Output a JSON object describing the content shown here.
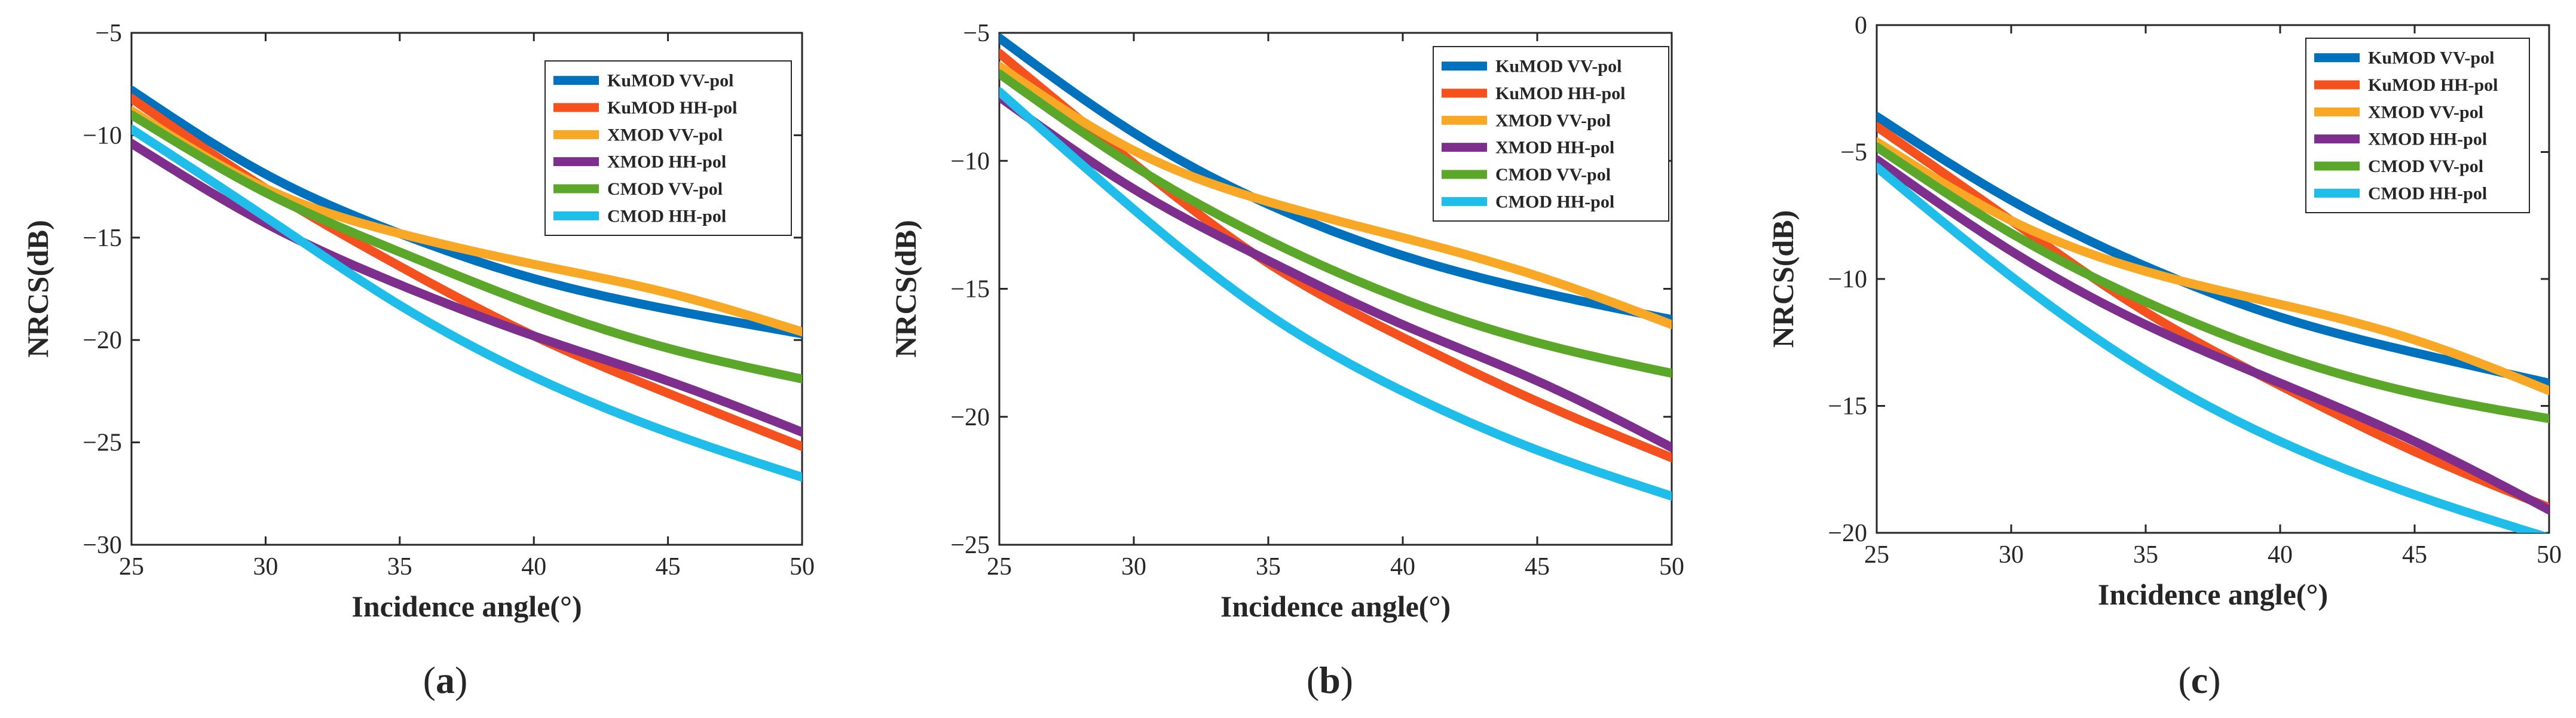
{
  "figure": {
    "colors": {
      "KuMOD VV-pol": "#0072BD",
      "KuMOD HH-pol": "#F4511E",
      "XMOD VV-pol": "#F9A825",
      "XMOD HH-pol": "#7E2F8E",
      "CMOD VV-pol": "#5AA72A",
      "CMOD HH-pol": "#1EBDEA"
    }
  },
  "chart_data": [
    {
      "id": "a",
      "type": "line",
      "panel_label": "a",
      "xlabel": "Incidence angle(°)",
      "ylabel": "NRCS(dB)",
      "xlim": [
        25,
        50
      ],
      "ylim": [
        -30,
        -5
      ],
      "xticks": [
        25,
        30,
        35,
        40,
        45,
        50
      ],
      "yticks": [
        -5,
        -10,
        -15,
        -20,
        -25,
        -30
      ],
      "legend_position": "top-right",
      "series": [
        {
          "name": "KuMOD VV-pol",
          "x": [
            25,
            30,
            35,
            40,
            45,
            50
          ],
          "values": [
            -7.8,
            -11.9,
            -14.8,
            -17.0,
            -18.5,
            -19.7
          ]
        },
        {
          "name": "KuMOD HH-pol",
          "x": [
            25,
            30,
            35,
            40,
            45,
            50
          ],
          "values": [
            -8.2,
            -12.6,
            -16.4,
            -19.8,
            -22.6,
            -25.2
          ]
        },
        {
          "name": "XMOD VV-pol",
          "x": [
            25,
            30,
            35,
            40,
            45,
            50
          ],
          "values": [
            -8.8,
            -12.6,
            -14.8,
            -16.3,
            -17.7,
            -19.6
          ]
        },
        {
          "name": "XMOD HH-pol",
          "x": [
            25,
            30,
            35,
            40,
            45,
            50
          ],
          "values": [
            -10.4,
            -14.3,
            -17.3,
            -19.8,
            -22.0,
            -24.5
          ]
        },
        {
          "name": "CMOD VV-pol",
          "x": [
            25,
            30,
            35,
            40,
            45,
            50
          ],
          "values": [
            -9.0,
            -12.8,
            -15.7,
            -18.3,
            -20.4,
            -21.9
          ]
        },
        {
          "name": "CMOD HH-pol",
          "x": [
            25,
            30,
            35,
            40,
            45,
            50
          ],
          "values": [
            -9.7,
            -14.0,
            -18.3,
            -21.8,
            -24.5,
            -26.7
          ]
        }
      ]
    },
    {
      "id": "b",
      "type": "line",
      "panel_label": "b",
      "xlabel": "Incidence angle(°)",
      "ylabel": "NRCS(dB)",
      "xlim": [
        25,
        50
      ],
      "ylim": [
        -25,
        -5
      ],
      "xticks": [
        25,
        30,
        35,
        40,
        45,
        50
      ],
      "yticks": [
        -5,
        -10,
        -15,
        -20,
        -25
      ],
      "legend_position": "top-right",
      "series": [
        {
          "name": "KuMOD VV-pol",
          "x": [
            25,
            30,
            35,
            40,
            45,
            50
          ],
          "values": [
            -5.2,
            -8.9,
            -11.7,
            -13.7,
            -15.1,
            -16.2
          ]
        },
        {
          "name": "KuMOD HH-pol",
          "x": [
            25,
            30,
            35,
            40,
            45,
            50
          ],
          "values": [
            -5.8,
            -10.1,
            -14.0,
            -16.9,
            -19.4,
            -21.6
          ]
        },
        {
          "name": "XMOD VV-pol",
          "x": [
            25,
            30,
            35,
            40,
            45,
            50
          ],
          "values": [
            -6.3,
            -9.6,
            -11.6,
            -13.0,
            -14.5,
            -16.4
          ]
        },
        {
          "name": "XMOD HH-pol",
          "x": [
            25,
            30,
            35,
            40,
            45,
            50
          ],
          "values": [
            -7.5,
            -11.1,
            -13.9,
            -16.4,
            -18.6,
            -21.2
          ]
        },
        {
          "name": "CMOD VV-pol",
          "x": [
            25,
            30,
            35,
            40,
            45,
            50
          ],
          "values": [
            -6.6,
            -10.2,
            -13.1,
            -15.4,
            -17.1,
            -18.3
          ]
        },
        {
          "name": "CMOD HH-pol",
          "x": [
            25,
            30,
            35,
            40,
            45,
            50
          ],
          "values": [
            -7.3,
            -11.9,
            -16.0,
            -19.0,
            -21.3,
            -23.1
          ]
        }
      ]
    },
    {
      "id": "c",
      "type": "line",
      "panel_label": "c",
      "xlabel": "Incidence angle(°)",
      "ylabel": "NRCS(dB)",
      "xlim": [
        25,
        50
      ],
      "ylim": [
        -20,
        0
      ],
      "xticks": [
        25,
        30,
        35,
        40,
        45,
        50
      ],
      "yticks": [
        0,
        -5,
        -10,
        -15,
        -20
      ],
      "legend_position": "top-right",
      "series": [
        {
          "name": "KuMOD VV-pol",
          "x": [
            25,
            30,
            35,
            40,
            45,
            50
          ],
          "values": [
            -3.6,
            -6.9,
            -9.5,
            -11.5,
            -12.9,
            -14.1
          ]
        },
        {
          "name": "KuMOD HH-pol",
          "x": [
            25,
            30,
            35,
            40,
            45,
            50
          ],
          "values": [
            -4.0,
            -7.7,
            -11.3,
            -14.2,
            -16.8,
            -19.0
          ]
        },
        {
          "name": "XMOD VV-pol",
          "x": [
            25,
            30,
            35,
            40,
            45,
            50
          ],
          "values": [
            -4.6,
            -7.7,
            -9.7,
            -11.0,
            -12.4,
            -14.4
          ]
        },
        {
          "name": "XMOD HH-pol",
          "x": [
            25,
            30,
            35,
            40,
            45,
            50
          ],
          "values": [
            -5.3,
            -8.9,
            -11.8,
            -14.1,
            -16.4,
            -19.1
          ]
        },
        {
          "name": "CMOD VV-pol",
          "x": [
            25,
            30,
            35,
            40,
            45,
            50
          ],
          "values": [
            -4.8,
            -8.2,
            -10.9,
            -13.0,
            -14.5,
            -15.5
          ]
        },
        {
          "name": "CMOD HH-pol",
          "x": [
            25,
            30,
            35,
            40,
            45,
            50
          ],
          "values": [
            -5.6,
            -9.9,
            -13.6,
            -16.4,
            -18.5,
            -20.2
          ]
        }
      ]
    }
  ]
}
